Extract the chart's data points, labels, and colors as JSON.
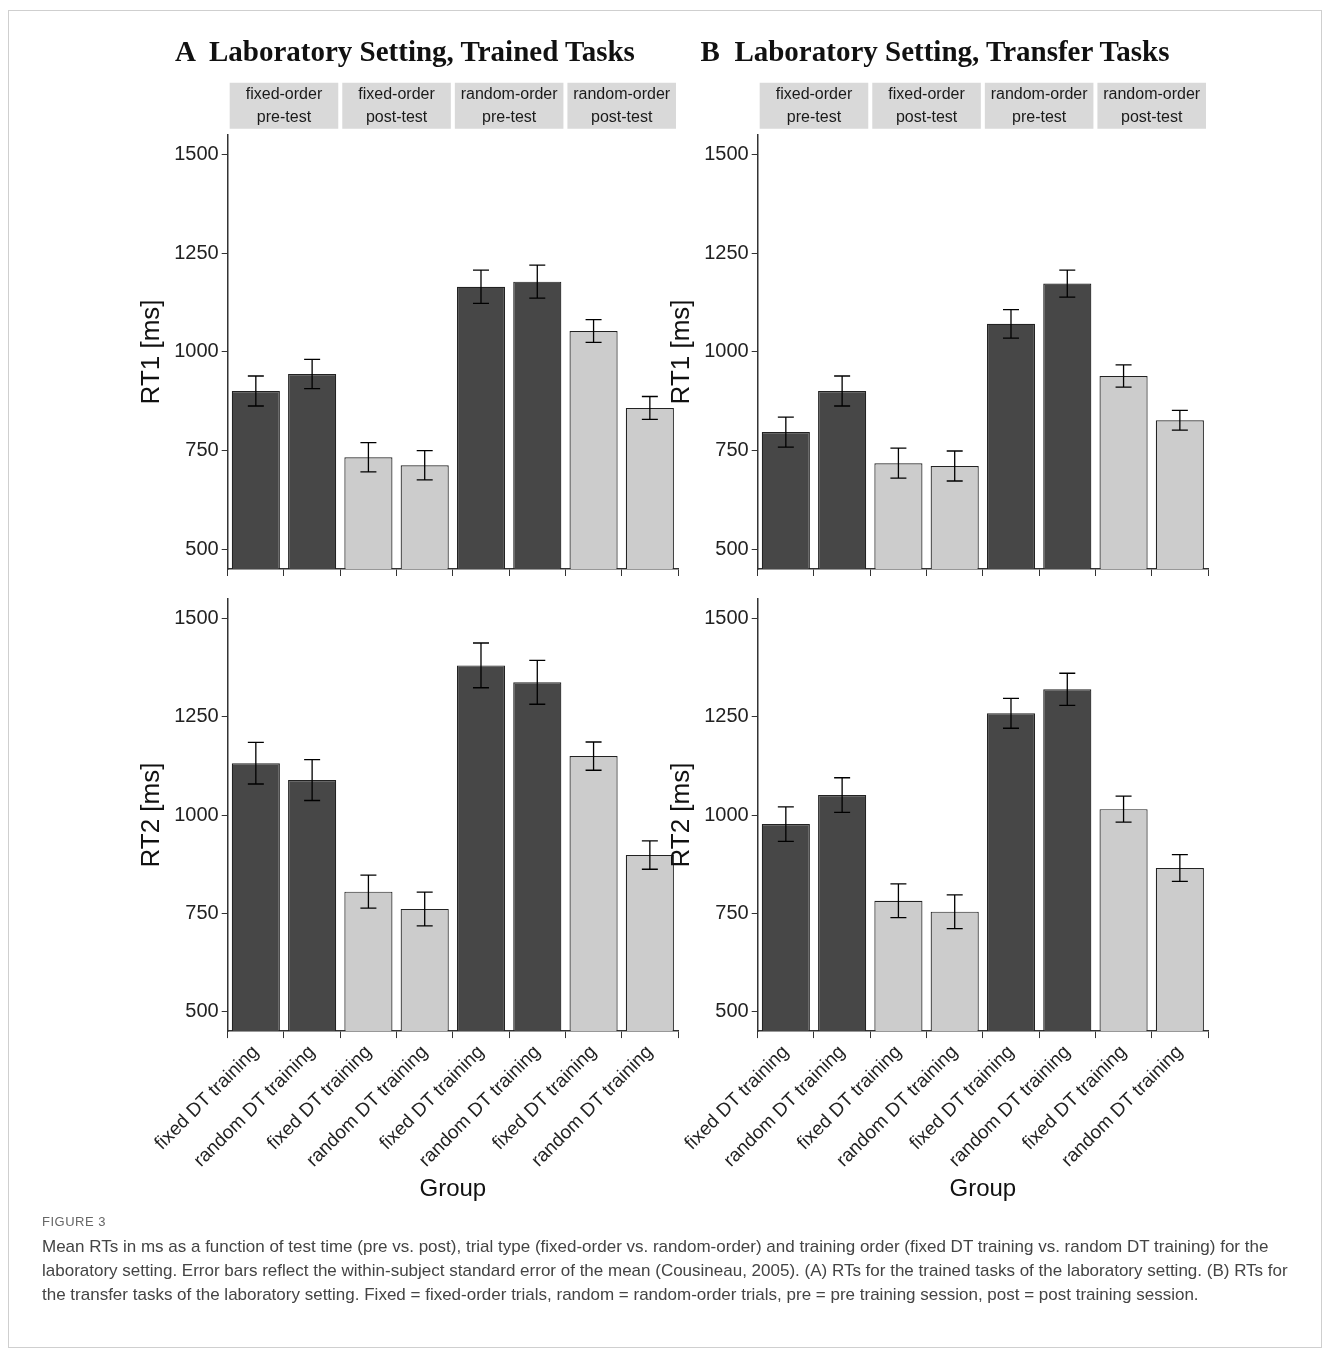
{
  "chart_data": [
    {
      "type": "bar",
      "title": "A  Laboratory Setting, Trained Tasks",
      "ylabel": "RT1 [ms]",
      "categories": [
        null,
        null,
        null,
        null,
        null,
        null,
        null,
        null
      ],
      "values": [
        901,
        944,
        733,
        713,
        1165,
        1178,
        1053,
        858
      ],
      "errors": [
        38,
        37,
        37,
        37,
        42,
        42,
        29,
        29
      ],
      "colors": [
        "#474747",
        "#474747",
        "#cccccc",
        "#cccccc",
        "#474747",
        "#474747",
        "#cccccc",
        "#cccccc"
      ],
      "ylim": [
        450,
        1550
      ],
      "yticks": [
        500,
        750,
        1000,
        1250,
        1500
      ],
      "tick_labels": "y",
      "annotations": [
        "fixed-order\npre-test",
        "fixed-order\npost-test",
        "random-order\npre-test",
        "random-order\npost-test"
      ]
    },
    {
      "type": "bar",
      "title": "B  Laboratory Setting, Transfer Tasks",
      "ylabel": "RT1 [ms]",
      "categories": [
        null,
        null,
        null,
        null,
        null,
        null,
        null,
        null
      ],
      "values": [
        797,
        901,
        718,
        711,
        1071,
        1173,
        939,
        827
      ],
      "errors": [
        38,
        38,
        38,
        38,
        36,
        34,
        28,
        25
      ],
      "colors": [
        "#474747",
        "#474747",
        "#cccccc",
        "#cccccc",
        "#474747",
        "#474747",
        "#cccccc",
        "#cccccc"
      ],
      "ylim": [
        450,
        1550
      ],
      "yticks": [
        500,
        750,
        1000,
        1250,
        1500
      ],
      "tick_labels": "y",
      "annotations": [
        "fixed-order\npre-test",
        "fixed-order\npost-test",
        "random-order\npre-test",
        "random-order\npost-test"
      ]
    },
    {
      "type": "bar",
      "ylabel": "RT2 [ms]",
      "xlabel": "Group",
      "categories": [
        "fixed DT training",
        "random DT training",
        "fixed DT training",
        "random DT training",
        "fixed DT training",
        "random DT training",
        "fixed DT training",
        "random DT training"
      ],
      "values": [
        1132,
        1089,
        805,
        761,
        1381,
        1338,
        1150,
        898
      ],
      "errors": [
        53,
        52,
        42,
        43,
        57,
        56,
        36,
        36
      ],
      "colors": [
        "#474747",
        "#474747",
        "#cccccc",
        "#cccccc",
        "#474747",
        "#474747",
        "#cccccc",
        "#cccccc"
      ],
      "ylim": [
        450,
        1550
      ],
      "yticks": [
        500,
        750,
        1000,
        1250,
        1500
      ]
    },
    {
      "type": "bar",
      "ylabel": "RT2 [ms]",
      "xlabel": "Group",
      "categories": [
        "fixed DT training",
        "random DT training",
        "fixed DT training",
        "random DT training",
        "fixed DT training",
        "random DT training",
        "fixed DT training",
        "random DT training"
      ],
      "values": [
        977,
        1051,
        782,
        754,
        1259,
        1320,
        1015,
        865
      ],
      "errors": [
        44,
        44,
        43,
        43,
        38,
        41,
        33,
        34
      ],
      "colors": [
        "#474747",
        "#474747",
        "#cccccc",
        "#cccccc",
        "#474747",
        "#474747",
        "#cccccc",
        "#cccccc"
      ],
      "ylim": [
        450,
        1550
      ],
      "yticks": [
        500,
        750,
        1000,
        1250,
        1500
      ],
      "annotations": [
        "FIGURE 3",
        "Mean RTs in ms as a function of test time (pre vs. post), trial type (fixed-order vs. random-order) and training order (fixed DT training vs. random DT training) for the laboratory setting. Error bars reflect the within-subject standard error of the mean (Cousineau, 2005). (A) RTs for the trained tasks of the laboratory setting. (B) RTs for the transfer tasks of the laboratory setting. Fixed = fixed-order trials, random = random-order trials, pre = pre training session, post = post training session."
      ]
    }
  ]
}
